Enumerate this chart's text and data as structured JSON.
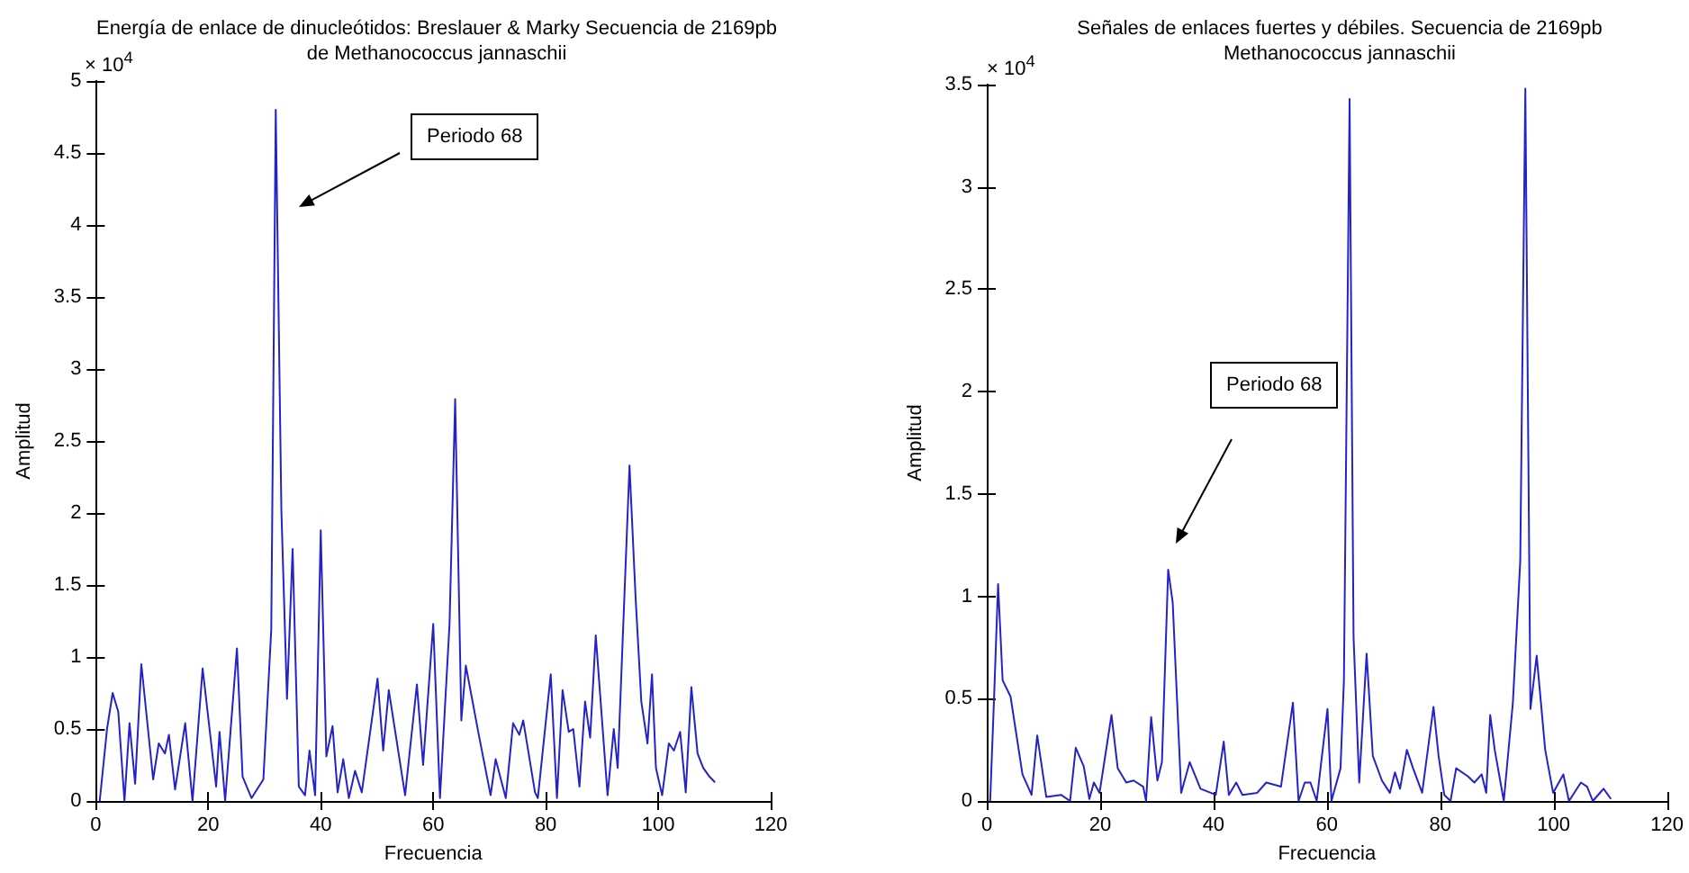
{
  "chart_data": [
    {
      "type": "line",
      "title": "Energía de enlace de dinucleótidos: Breslauer & Marky Secuencia de 2169pb\nde Methanococcus jannaschii",
      "xlabel": "Frecuencia",
      "ylabel": "Amplitud",
      "annotations": [
        "Periodo 68",
        "× 10$^{4}$"
      ],
      "xlim": [
        0,
        120
      ],
      "xticks": [
        0,
        20,
        40,
        60,
        80,
        100,
        120
      ],
      "ylim": [
        0,
        5
      ],
      "yticks": [
        0,
        0.5,
        1,
        1.5,
        2,
        2.5,
        3,
        3.5,
        4,
        4.5,
        5
      ],
      "grid": false,
      "series": [
        {
          "color": "#2323c8",
          "x": [
            0.7,
            2,
            3,
            4,
            5.1,
            6,
            7,
            8.1,
            10.2,
            11.2,
            12.3,
            13,
            14.1,
            15.9,
            17.2,
            19,
            21.4,
            22,
            23,
            25.1,
            26.1,
            27.7,
            29.8,
            31.2,
            32,
            33,
            34,
            35,
            36.1,
            37.2,
            38,
            39,
            40,
            41,
            42.1,
            43,
            44,
            45,
            46.1,
            47.3,
            50.1,
            51.1,
            52.1,
            55,
            57.1,
            58.2,
            60,
            61.2,
            62.9,
            63.9,
            65,
            65.8,
            68.1,
            70.2,
            71.1,
            72.9,
            74.2,
            75.3,
            76,
            78.1,
            78.6,
            80.9,
            82,
            83,
            84.1,
            84.9,
            86,
            87,
            87.9,
            88.9,
            91,
            92.1,
            92.8,
            94.9,
            96,
            97,
            98.1,
            98.9,
            99.6,
            100.7,
            101.9,
            102.8,
            103.9,
            104.9,
            105.9,
            107,
            108,
            109.1,
            110.1
          ],
          "values": [
            0,
            0.5,
            0.75,
            0.62,
            0,
            0.54,
            0.12,
            0.95,
            0.15,
            0.4,
            0.33,
            0.46,
            0.08,
            0.54,
            0,
            0.92,
            0.1,
            0.48,
            0,
            1.06,
            0.17,
            0.02,
            0.15,
            1.19,
            4.8,
            2.02,
            0.71,
            1.75,
            0.1,
            0.04,
            0.35,
            0.04,
            1.88,
            0.31,
            0.52,
            0.06,
            0.29,
            0.02,
            0.21,
            0.06,
            0.85,
            0.35,
            0.77,
            0.04,
            0.81,
            0.25,
            1.23,
            0.02,
            1.23,
            2.79,
            0.56,
            0.94,
            0.46,
            0.04,
            0.29,
            0.02,
            0.54,
            0.46,
            0.56,
            0.06,
            0.02,
            0.88,
            0.02,
            0.77,
            0.48,
            0.5,
            0.1,
            0.69,
            0.44,
            1.15,
            0.04,
            0.5,
            0.23,
            2.33,
            1.4,
            0.69,
            0.4,
            0.88,
            0.23,
            0.04,
            0.4,
            0.35,
            0.48,
            0.06,
            0.79,
            0.33,
            0.23,
            0.17,
            0.13
          ]
        }
      ]
    },
    {
      "type": "line",
      "title": "Señales de enlaces fuertes y débiles. Secuencia de 2169pb\nMethanococcus jannaschii",
      "xlabel": "Frecuencia",
      "ylabel": "Amplitud",
      "annotations": [
        "Periodo 68",
        "× 10$^{4}$"
      ],
      "xlim": [
        0,
        120
      ],
      "xticks": [
        0,
        20,
        40,
        60,
        80,
        100,
        120
      ],
      "ylim": [
        0,
        3.5
      ],
      "yticks": [
        0,
        0.5,
        1,
        1.5,
        2,
        2.5,
        3,
        3.5
      ],
      "grid": false,
      "series": [
        {
          "color": "#2323c8",
          "x": [
            0.6,
            1.3,
            2,
            2.8,
            4.2,
            6.3,
            7.9,
            8.9,
            10.5,
            13.1,
            14.7,
            15.7,
            17.1,
            18.1,
            18.9,
            19.9,
            22,
            23.1,
            24.6,
            25.9,
            27.6,
            28.1,
            29,
            30.1,
            30.9,
            32,
            32.8,
            34.3,
            35.8,
            37.7,
            40.4,
            41.8,
            42.7,
            44,
            45.1,
            47.7,
            49.3,
            51.9,
            54,
            55,
            56.1,
            57.1,
            58.2,
            60.1,
            60.8,
            62.4,
            63,
            64,
            64.7,
            65.7,
            67,
            68.1,
            69.7,
            71.1,
            72,
            72.9,
            74.1,
            75.2,
            76.8,
            78.8,
            79.7,
            80.7,
            81.8,
            82.8,
            84.9,
            86,
            87.3,
            88.1,
            88.8,
            89.6,
            91.2,
            92.8,
            94.1,
            95,
            95.9,
            97,
            98.5,
            99.9,
            101.7,
            102.7,
            104.8,
            105.9,
            106.9,
            108.8,
            110.1
          ],
          "values": [
            0,
            0.51,
            1.06,
            0.59,
            0.51,
            0.13,
            0.03,
            0.32,
            0.02,
            0.03,
            0,
            0.26,
            0.17,
            0.01,
            0.09,
            0.04,
            0.42,
            0.16,
            0.09,
            0.1,
            0.07,
            0,
            0.41,
            0.1,
            0.19,
            1.13,
            0.97,
            0.04,
            0.19,
            0.06,
            0.03,
            0.29,
            0.03,
            0.09,
            0.03,
            0.04,
            0.09,
            0.07,
            0.48,
            0,
            0.09,
            0.09,
            0,
            0.45,
            0,
            0.16,
            0.59,
            3.43,
            0.8,
            0.09,
            0.72,
            0.22,
            0.1,
            0.04,
            0.14,
            0.06,
            0.25,
            0.16,
            0.04,
            0.46,
            0.22,
            0.03,
            0,
            0.16,
            0.12,
            0.09,
            0.13,
            0.04,
            0.42,
            0.25,
            0,
            0.48,
            1.17,
            3.48,
            0.45,
            0.71,
            0.25,
            0.04,
            0.13,
            0,
            0.09,
            0.07,
            0,
            0.06,
            0.01
          ]
        }
      ]
    }
  ]
}
